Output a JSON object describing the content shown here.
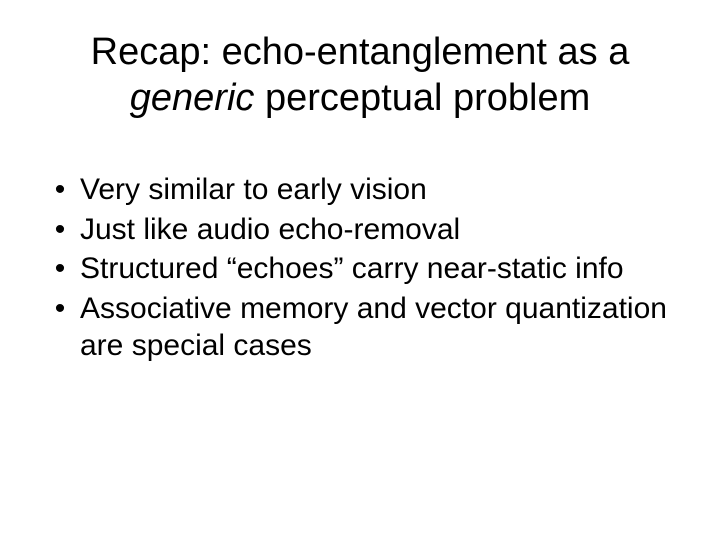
{
  "title": {
    "line1_prefix": "Recap: echo-entanglement as a",
    "line2_italic": "generic",
    "line2_rest": " perceptual problem"
  },
  "bullets": [
    "Very similar to early vision",
    "Just like audio echo-removal",
    "Structured “echoes” carry near-static info",
    "Associative memory and vector quantization are special cases"
  ],
  "bullet_marker": "•",
  "colors": {
    "background": "#ffffff",
    "text": "#000000"
  },
  "font_sizes": {
    "title": 38,
    "body": 30
  }
}
